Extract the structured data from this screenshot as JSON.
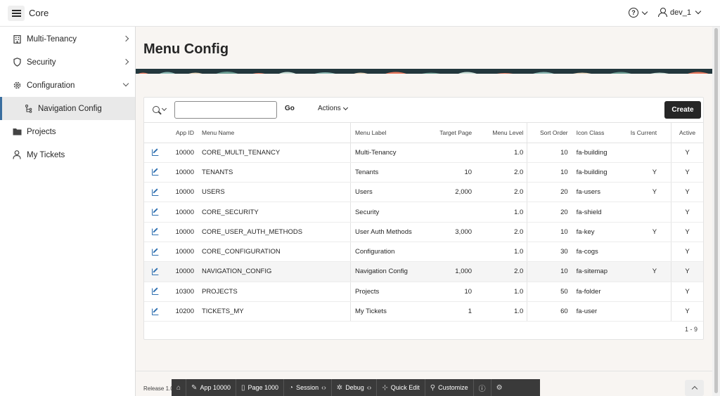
{
  "app": {
    "title": "Core"
  },
  "header": {
    "help_symbol": "?",
    "username": "dev_1"
  },
  "sidebar": {
    "items": [
      {
        "label": "Multi-Tenancy",
        "icon": "building-icon"
      },
      {
        "label": "Security",
        "icon": "shield-icon"
      },
      {
        "label": "Configuration",
        "icon": "cog-icon"
      },
      {
        "label": "Navigation Config",
        "icon": "sitemap-icon"
      },
      {
        "label": "Projects",
        "icon": "folder-icon"
      },
      {
        "label": "My Tickets",
        "icon": "user-icon"
      }
    ]
  },
  "page": {
    "title": "Menu Config"
  },
  "toolbar": {
    "search_value": "",
    "go_label": "Go",
    "actions_label": "Actions",
    "create_label": "Create"
  },
  "table": {
    "headers": {
      "app_id": "App ID",
      "menu_name": "Menu Name",
      "menu_label": "Menu Label",
      "target_page": "Target Page",
      "menu_level": "Menu Level",
      "sort_order": "Sort Order",
      "icon_class": "Icon Class",
      "is_current": "Is Current",
      "active": "Active"
    },
    "rows": [
      {
        "app_id": "10000",
        "menu_name": "CORE_MULTI_TENANCY",
        "menu_label": "Multi-Tenancy",
        "target_page": "",
        "menu_level": "1.0",
        "sort_order": "10",
        "icon_class": "fa-building",
        "is_current": "",
        "active": "Y"
      },
      {
        "app_id": "10000",
        "menu_name": "TENANTS",
        "menu_label": "Tenants",
        "target_page": "10",
        "menu_level": "2.0",
        "sort_order": "10",
        "icon_class": "fa-building",
        "is_current": "Y",
        "active": "Y"
      },
      {
        "app_id": "10000",
        "menu_name": "USERS",
        "menu_label": "Users",
        "target_page": "2,000",
        "menu_level": "2.0",
        "sort_order": "20",
        "icon_class": "fa-users",
        "is_current": "Y",
        "active": "Y"
      },
      {
        "app_id": "10000",
        "menu_name": "CORE_SECURITY",
        "menu_label": "Security",
        "target_page": "",
        "menu_level": "1.0",
        "sort_order": "20",
        "icon_class": "fa-shield",
        "is_current": "",
        "active": "Y"
      },
      {
        "app_id": "10000",
        "menu_name": "CORE_USER_AUTH_METHODS",
        "menu_label": "User Auth Methods",
        "target_page": "3,000",
        "menu_level": "2.0",
        "sort_order": "10",
        "icon_class": "fa-key",
        "is_current": "Y",
        "active": "Y"
      },
      {
        "app_id": "10000",
        "menu_name": "CORE_CONFIGURATION",
        "menu_label": "Configuration",
        "target_page": "",
        "menu_level": "1.0",
        "sort_order": "30",
        "icon_class": "fa-cogs",
        "is_current": "",
        "active": "Y"
      },
      {
        "app_id": "10000",
        "menu_name": "NAVIGATION_CONFIG",
        "menu_label": "Navigation Config",
        "target_page": "1,000",
        "menu_level": "2.0",
        "sort_order": "10",
        "icon_class": "fa-sitemap",
        "is_current": "Y",
        "active": "Y"
      },
      {
        "app_id": "10300",
        "menu_name": "PROJECTS",
        "menu_label": "Projects",
        "target_page": "10",
        "menu_level": "1.0",
        "sort_order": "50",
        "icon_class": "fa-folder",
        "is_current": "",
        "active": "Y"
      },
      {
        "app_id": "10200",
        "menu_name": "TICKETS_MY",
        "menu_label": "My Tickets",
        "target_page": "1",
        "menu_level": "1.0",
        "sort_order": "60",
        "icon_class": "fa-user",
        "is_current": "",
        "active": "Y"
      }
    ],
    "pagination": "1 - 9"
  },
  "footer": {
    "release": "Release 1.0"
  },
  "devbar": {
    "items": [
      {
        "label": "",
        "icon": "home-icon"
      },
      {
        "label": "App 10000",
        "icon": "edit-icon"
      },
      {
        "label": "Page 1000",
        "icon": "page-icon"
      },
      {
        "label": "Session",
        "icon": "session-icon"
      },
      {
        "label": "Debug",
        "icon": "debug-icon"
      },
      {
        "label": "Quick Edit",
        "icon": "quick-edit-icon"
      },
      {
        "label": "Customize",
        "icon": "customize-icon"
      },
      {
        "label": "",
        "icon": "info-icon"
      },
      {
        "label": "",
        "icon": "gear-icon"
      }
    ]
  },
  "colors": {
    "accent": "#3a6e9f",
    "dark": "#262626",
    "edit_link": "#3070b0"
  }
}
